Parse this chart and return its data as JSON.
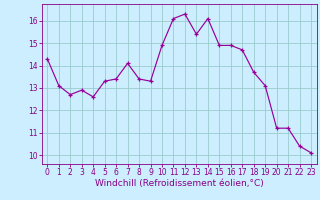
{
  "x": [
    0,
    1,
    2,
    3,
    4,
    5,
    6,
    7,
    8,
    9,
    10,
    11,
    12,
    13,
    14,
    15,
    16,
    17,
    18,
    19,
    20,
    21,
    22,
    23
  ],
  "y": [
    14.3,
    13.1,
    12.7,
    12.9,
    12.6,
    13.3,
    13.4,
    14.1,
    13.4,
    13.3,
    14.9,
    16.1,
    16.3,
    15.4,
    16.1,
    14.9,
    14.9,
    14.7,
    13.7,
    13.1,
    11.2,
    11.2,
    10.4,
    10.1
  ],
  "line_color": "#990099",
  "marker": "+",
  "marker_size": 3,
  "marker_linewidth": 0.9,
  "bg_color": "#cceeff",
  "grid_color": "#99cccc",
  "yticks": [
    10,
    11,
    12,
    13,
    14,
    15,
    16
  ],
  "xlabel": "Windchill (Refroidissement éolien,°C)",
  "xlim": [
    -0.5,
    23.5
  ],
  "ylim": [
    9.6,
    16.75
  ],
  "axis_color": "#880088",
  "tick_label_fontsize": 5.5,
  "xlabel_fontsize": 6.5,
  "linewidth": 0.85
}
